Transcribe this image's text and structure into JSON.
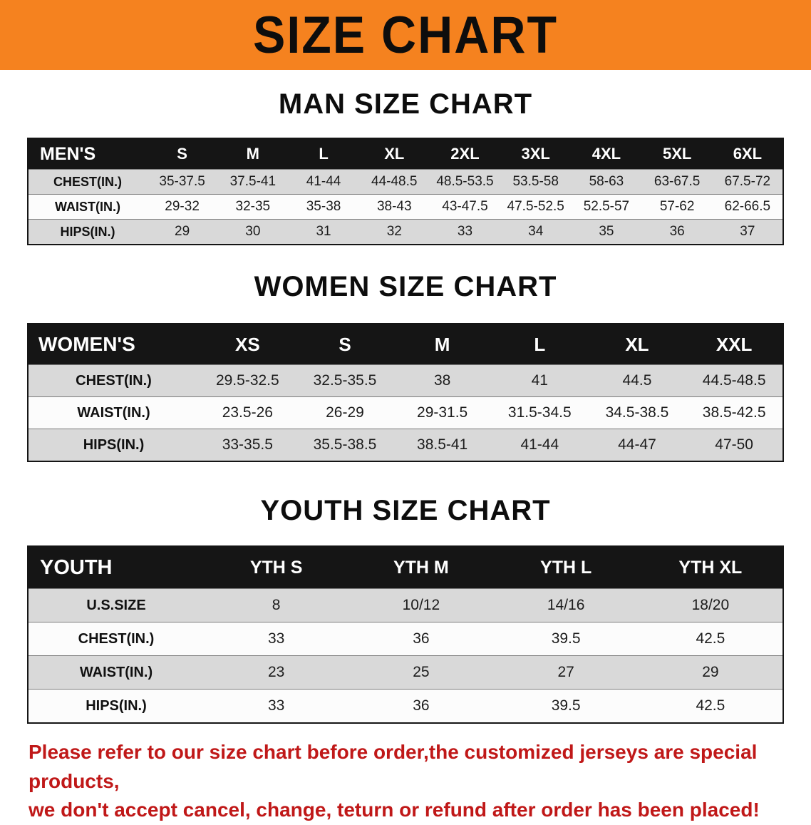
{
  "banner": {
    "title": "SIZE CHART",
    "bg_color": "#F5821F"
  },
  "men": {
    "heading": "MAN SIZE CHART",
    "header": [
      "MEN'S",
      "S",
      "M",
      "L",
      "XL",
      "2XL",
      "3XL",
      "4XL",
      "5XL",
      "6XL"
    ],
    "rows": [
      {
        "label": "CHEST(IN.)",
        "values": [
          "35-37.5",
          "37.5-41",
          "41-44",
          "44-48.5",
          "48.5-53.5",
          "53.5-58",
          "58-63",
          "63-67.5",
          "67.5-72"
        ]
      },
      {
        "label": "WAIST(IN.)",
        "values": [
          "29-32",
          "32-35",
          "35-38",
          "38-43",
          "43-47.5",
          "47.5-52.5",
          "52.5-57",
          "57-62",
          "62-66.5"
        ]
      },
      {
        "label": "HIPS(IN.)",
        "values": [
          "29",
          "30",
          "31",
          "32",
          "33",
          "34",
          "35",
          "36",
          "37"
        ]
      }
    ]
  },
  "women": {
    "heading": "WOMEN SIZE CHART",
    "header": [
      "WOMEN'S",
      "XS",
      "S",
      "M",
      "L",
      "XL",
      "XXL"
    ],
    "rows": [
      {
        "label": "CHEST(IN.)",
        "values": [
          "29.5-32.5",
          "32.5-35.5",
          "38",
          "41",
          "44.5",
          "44.5-48.5"
        ]
      },
      {
        "label": "WAIST(IN.)",
        "values": [
          "23.5-26",
          "26-29",
          "29-31.5",
          "31.5-34.5",
          "34.5-38.5",
          "38.5-42.5"
        ]
      },
      {
        "label": "HIPS(IN.)",
        "values": [
          "33-35.5",
          "35.5-38.5",
          "38.5-41",
          "41-44",
          "44-47",
          "47-50"
        ]
      }
    ]
  },
  "youth": {
    "heading": "YOUTH SIZE CHART",
    "header": [
      "YOUTH",
      "YTH S",
      "YTH M",
      "YTH L",
      "YTH XL"
    ],
    "rows": [
      {
        "label": "U.S.SIZE",
        "values": [
          "8",
          "10/12",
          "14/16",
          "18/20"
        ]
      },
      {
        "label": "CHEST(IN.)",
        "values": [
          "33",
          "36",
          "39.5",
          "42.5"
        ]
      },
      {
        "label": "WAIST(IN.)",
        "values": [
          "23",
          "25",
          "27",
          "29"
        ]
      },
      {
        "label": "HIPS(IN.)",
        "values": [
          "33",
          "36",
          "39.5",
          "42.5"
        ]
      }
    ]
  },
  "disclaimer": {
    "line1": "Please refer to our size chart before order,the customized jerseys are special products,",
    "line2": "we don't accept cancel, change, teturn or refund after order has been placed!",
    "color": "#c01818"
  }
}
